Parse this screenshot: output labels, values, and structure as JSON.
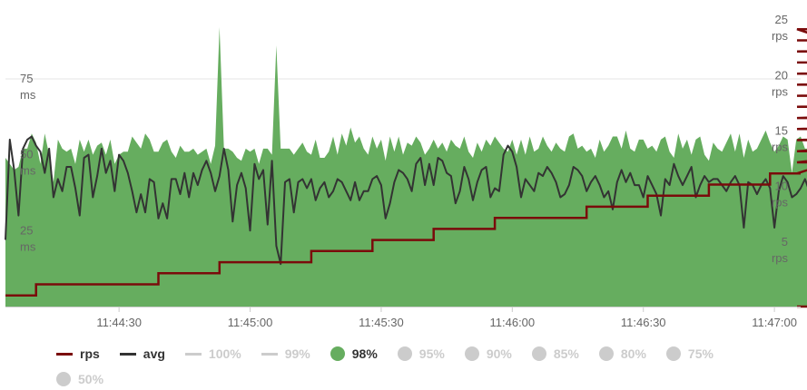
{
  "chart_data": {
    "type": "line",
    "title": "",
    "x_ticks": [
      "11:44:30",
      "11:45:00",
      "11:45:30",
      "11:46:00",
      "11:46:30",
      "11:47:00"
    ],
    "x_range": [
      "11:44:04",
      "11:47:06"
    ],
    "y_left": {
      "unit": "ms",
      "ticks": [
        25,
        50,
        75
      ],
      "range": [
        0,
        95
      ]
    },
    "y_right": {
      "unit": "rps",
      "ticks": [
        5,
        10,
        15,
        20,
        25
      ],
      "range": [
        0,
        26
      ]
    },
    "grid": true,
    "legend_position": "bottom",
    "series": [
      {
        "name": "98%",
        "axis": "left",
        "kind": "area",
        "color": "#66ad5f",
        "sample_interval_s": 1,
        "values": [
          49,
          47,
          45,
          46,
          52,
          52,
          57,
          54,
          47,
          57,
          50,
          41,
          55,
          52,
          51,
          52,
          47,
          55,
          51,
          55,
          50,
          53,
          54,
          50,
          55,
          47,
          50,
          51,
          51,
          56,
          54,
          52,
          57,
          55,
          51,
          51,
          54,
          55,
          51,
          49,
          53,
          51,
          51,
          52,
          50,
          51,
          52,
          47,
          53,
          92,
          52,
          52,
          51,
          49,
          48,
          52,
          51,
          52,
          47,
          52,
          52,
          50,
          86,
          52,
          52,
          52,
          50,
          52,
          54,
          51,
          50,
          55,
          49,
          49,
          51,
          56,
          50,
          57,
          53,
          59,
          54,
          56,
          52,
          50,
          56,
          52,
          55,
          48,
          56,
          51,
          56,
          50,
          54,
          53,
          56,
          54,
          50,
          52,
          55,
          52,
          54,
          51,
          55,
          53,
          52,
          56,
          51,
          49,
          54,
          51,
          55,
          53,
          56,
          54,
          52,
          51,
          55,
          50,
          55,
          50,
          56,
          51,
          52,
          56,
          53,
          51,
          54,
          52,
          51,
          56,
          57,
          52,
          53,
          51,
          52,
          49,
          55,
          51,
          53,
          56,
          56,
          52,
          58,
          52,
          51,
          55,
          55,
          52,
          53,
          51,
          55,
          56,
          51,
          49,
          57,
          52,
          55,
          50,
          55,
          56,
          50,
          48,
          54,
          52,
          51,
          54,
          57,
          51,
          57,
          49,
          55,
          51,
          52,
          55,
          58,
          54,
          51,
          53,
          56,
          55,
          44,
          55,
          56,
          52,
          52,
          56,
          51
        ]
      },
      {
        "name": "avg",
        "axis": "left",
        "kind": "line",
        "color": "#333333",
        "sample_interval_s": 1,
        "values": [
          22,
          55,
          45,
          30,
          52,
          55,
          56,
          53,
          51,
          44,
          52,
          36,
          42,
          38,
          46,
          46,
          39,
          30,
          49,
          50,
          36,
          43,
          52,
          44,
          48,
          38,
          50,
          48,
          44,
          38,
          31,
          37,
          31,
          42,
          41,
          29,
          34,
          29,
          42,
          42,
          37,
          44,
          36,
          44,
          40,
          45,
          48,
          44,
          38,
          43,
          52,
          45,
          28,
          40,
          44,
          39,
          25,
          47,
          42,
          45,
          27,
          48,
          20,
          14,
          41,
          42,
          31,
          41,
          42,
          39,
          42,
          35,
          39,
          41,
          36,
          38,
          42,
          41,
          38,
          35,
          41,
          35,
          38,
          38,
          42,
          43,
          40,
          29,
          34,
          41,
          45,
          44,
          42,
          38,
          47,
          49,
          40,
          47,
          40,
          49,
          48,
          44,
          43,
          34,
          38,
          46,
          42,
          35,
          41,
          45,
          46,
          36,
          39,
          38,
          50,
          53,
          51,
          46,
          36,
          42,
          40,
          38,
          44,
          43,
          46,
          44,
          41,
          36,
          37,
          40,
          46,
          45,
          43,
          38,
          41,
          43,
          40,
          36,
          38,
          32,
          41,
          45,
          41,
          44,
          40,
          40,
          36,
          43,
          40,
          37,
          30,
          42,
          40,
          47,
          43,
          40,
          43,
          46,
          36,
          40,
          43,
          41,
          42,
          42,
          40,
          38,
          41,
          43,
          40,
          26,
          41,
          40,
          37,
          40,
          42,
          39,
          26,
          38,
          43,
          41,
          36,
          37,
          39,
          42,
          38,
          36,
          31,
          36,
          41,
          40,
          40,
          27,
          33,
          38,
          39,
          34,
          28,
          31,
          44
        ]
      },
      {
        "name": "rps",
        "axis": "right",
        "kind": "step",
        "color": "#7a0b0b",
        "step_interval_s": 7,
        "values": [
          1,
          2,
          2,
          2,
          2,
          3,
          3,
          4,
          4,
          4,
          5,
          5,
          6,
          6,
          7,
          7,
          8,
          8,
          8,
          9,
          9,
          10,
          10,
          11,
          11,
          12,
          12,
          13,
          13,
          14,
          14,
          15,
          15,
          16,
          16,
          17,
          17,
          18,
          18,
          18,
          19,
          19,
          20,
          20,
          21,
          21,
          22,
          22,
          23,
          23,
          24,
          24,
          25,
          25,
          0
        ]
      },
      {
        "name": "100%",
        "kind": "area",
        "hidden": true
      },
      {
        "name": "99%",
        "kind": "area",
        "hidden": true
      },
      {
        "name": "95%",
        "kind": "area",
        "hidden": true
      },
      {
        "name": "90%",
        "kind": "area",
        "hidden": true
      },
      {
        "name": "85%",
        "kind": "area",
        "hidden": true
      },
      {
        "name": "80%",
        "kind": "area",
        "hidden": true
      },
      {
        "name": "75%",
        "kind": "area",
        "hidden": true
      },
      {
        "name": "50%",
        "kind": "area",
        "hidden": true
      }
    ]
  },
  "legend": [
    {
      "key": "rps",
      "label": "rps",
      "style": "line",
      "color": "#7a0b0b",
      "active": true
    },
    {
      "key": "avg",
      "label": "avg",
      "style": "line",
      "color": "#333333",
      "active": true
    },
    {
      "key": "p100",
      "label": "100%",
      "style": "line",
      "color": "#cccccc",
      "active": false
    },
    {
      "key": "p99",
      "label": "99%",
      "style": "line",
      "color": "#cccccc",
      "active": false
    },
    {
      "key": "p98",
      "label": "98%",
      "style": "dot",
      "color": "#66ad5f",
      "active": true
    },
    {
      "key": "p95",
      "label": "95%",
      "style": "dot",
      "color": "#cccccc",
      "active": false
    },
    {
      "key": "p90",
      "label": "90%",
      "style": "dot",
      "color": "#cccccc",
      "active": false
    },
    {
      "key": "p85",
      "label": "85%",
      "style": "dot",
      "color": "#cccccc",
      "active": false
    },
    {
      "key": "p80",
      "label": "80%",
      "style": "dot",
      "color": "#cccccc",
      "active": false
    },
    {
      "key": "p75",
      "label": "75%",
      "style": "dot",
      "color": "#cccccc",
      "active": false
    },
    {
      "key": "p50",
      "label": "50%",
      "style": "dot",
      "color": "#cccccc",
      "active": false
    }
  ]
}
